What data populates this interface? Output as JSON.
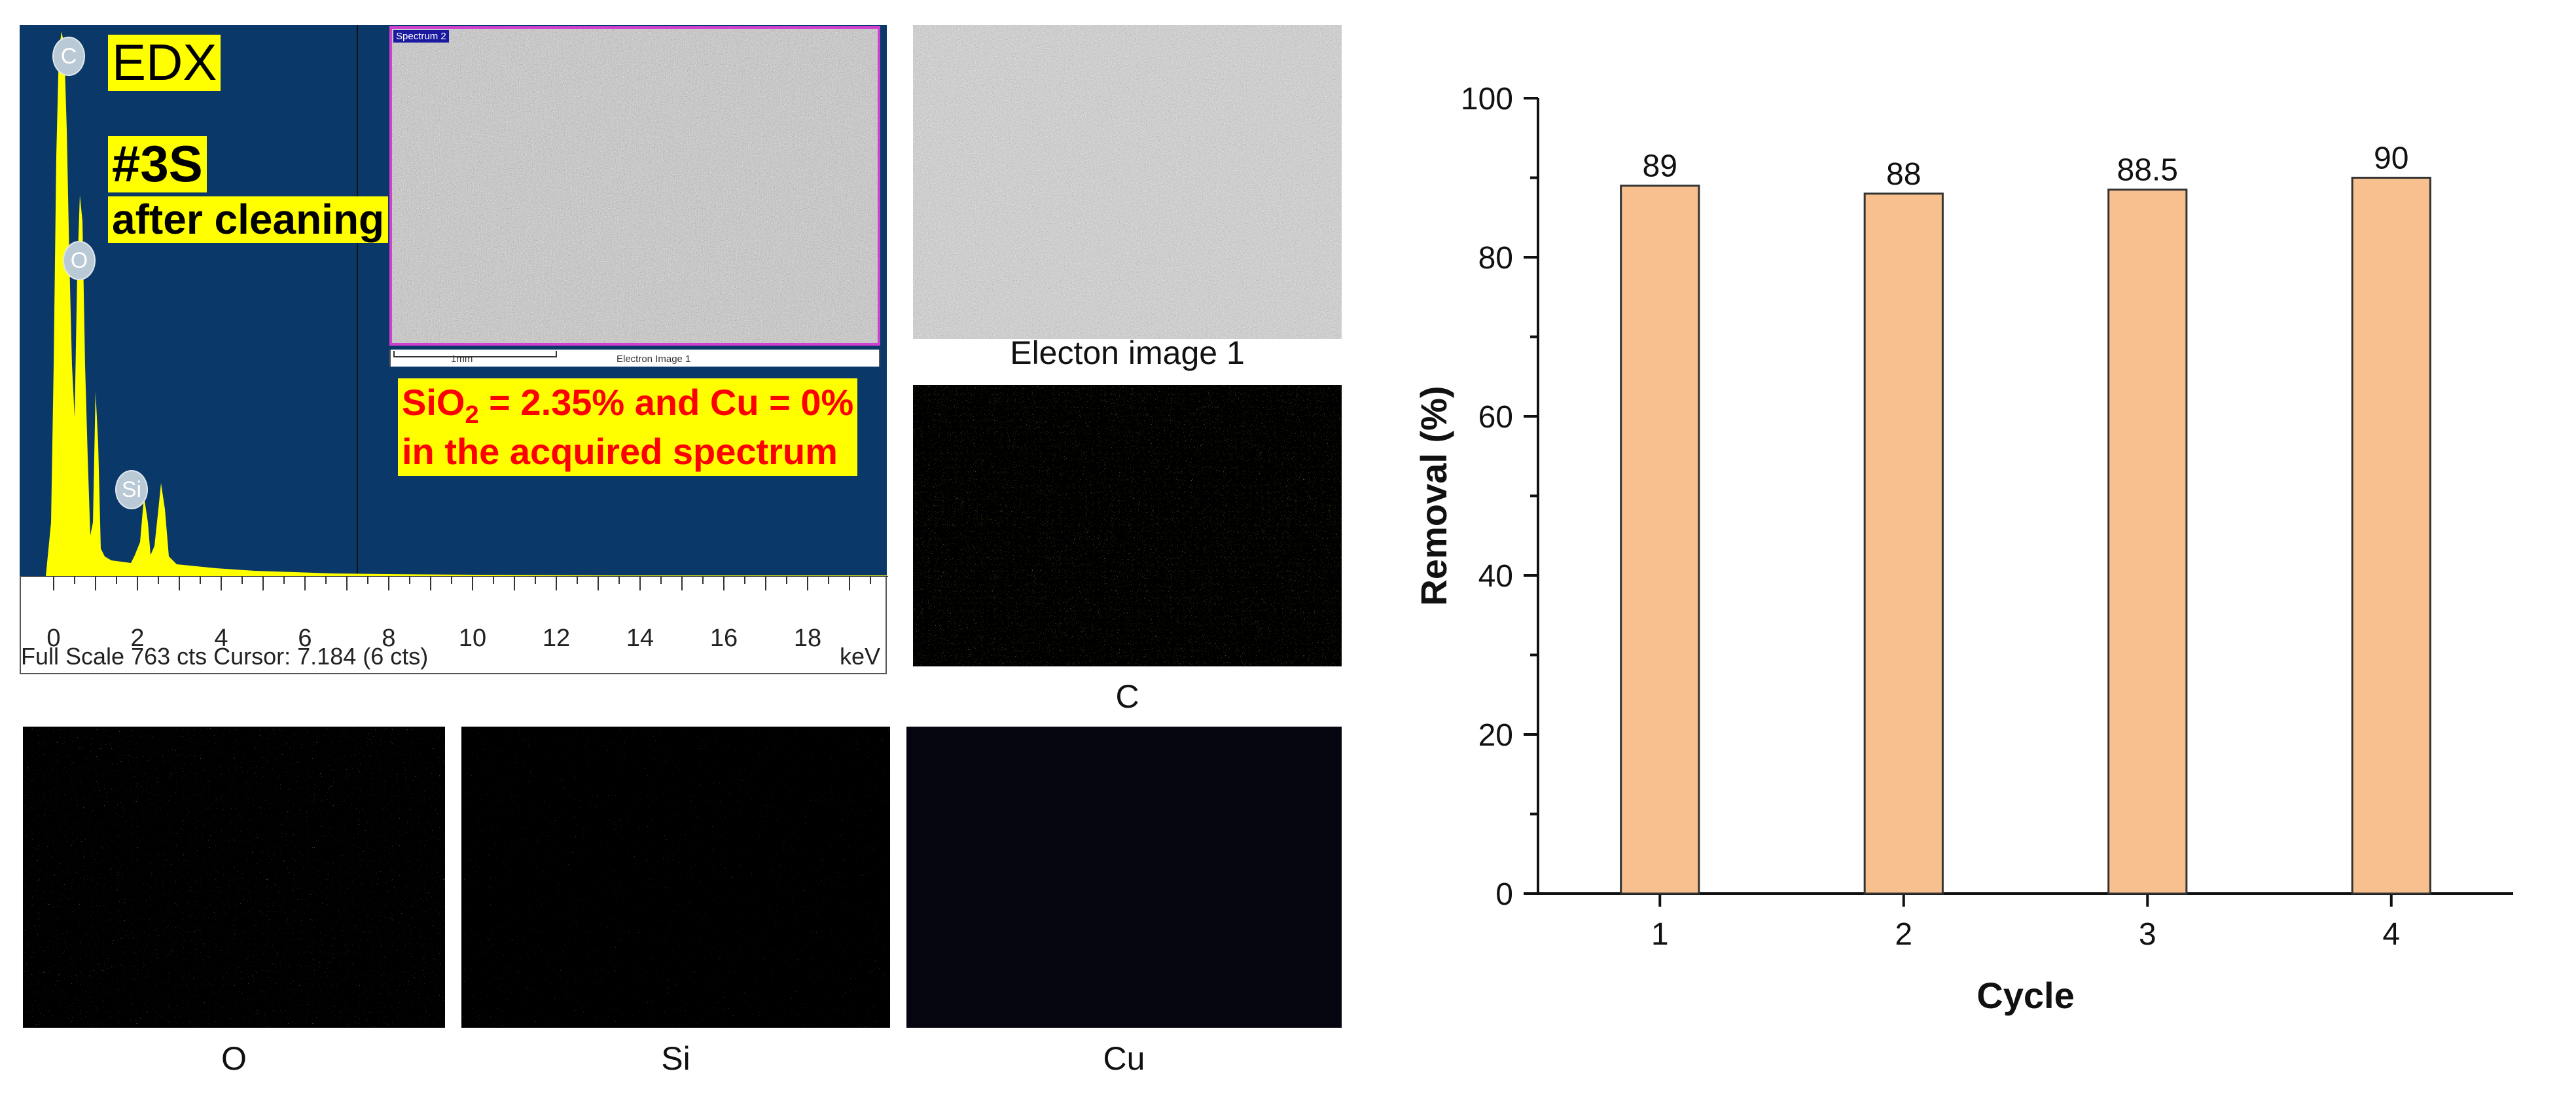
{
  "edx": {
    "title": "EDX",
    "sample": "#3S",
    "condition": "after cleaning",
    "inset_tag": "Spectrum 2",
    "inset_scale": "1mm",
    "inset_caption": "Electron Image 1",
    "composition_line1_pre": "SiO",
    "composition_line1_sub": "2",
    "composition_line1_post": " = 2.35% and Cu = 0%",
    "composition_line2": "in the acquired spectrum",
    "status_text": "Full Scale 763 cts Cursor: 7.184  (6 cts)",
    "unit": "keV",
    "ticks": [
      "0",
      "2",
      "4",
      "6",
      "8",
      "10",
      "12",
      "14",
      "16",
      "18"
    ],
    "peaks": [
      "C",
      "O",
      "Si"
    ],
    "colors": {
      "background": "#0a3868",
      "spectrum": "#ffff00",
      "inset_border": "#d040d0"
    }
  },
  "maps": {
    "electron_label": "Electon image 1",
    "c_label": "C",
    "o_label": "O",
    "si_label": "Si",
    "cu_label": "Cu",
    "colors": {
      "C": "#e6e62a",
      "O": "#cfcfcf",
      "Si": "#e23030",
      "Cu": "#0a0a20"
    }
  },
  "chart_data": {
    "type": "bar",
    "categories": [
      "1",
      "2",
      "3",
      "4"
    ],
    "values": [
      89,
      88,
      88.5,
      90
    ],
    "data_labels": [
      "89",
      "88",
      "88.5",
      "90"
    ],
    "title": "",
    "xlabel": "Cycle",
    "ylabel": "Removal (%)",
    "ylim": [
      0,
      100
    ],
    "yticks": [
      "0",
      "20",
      "40",
      "60",
      "80",
      "100"
    ],
    "grid": false,
    "bar_color": "#f9c08f",
    "bar_edge_color": "#333333"
  }
}
